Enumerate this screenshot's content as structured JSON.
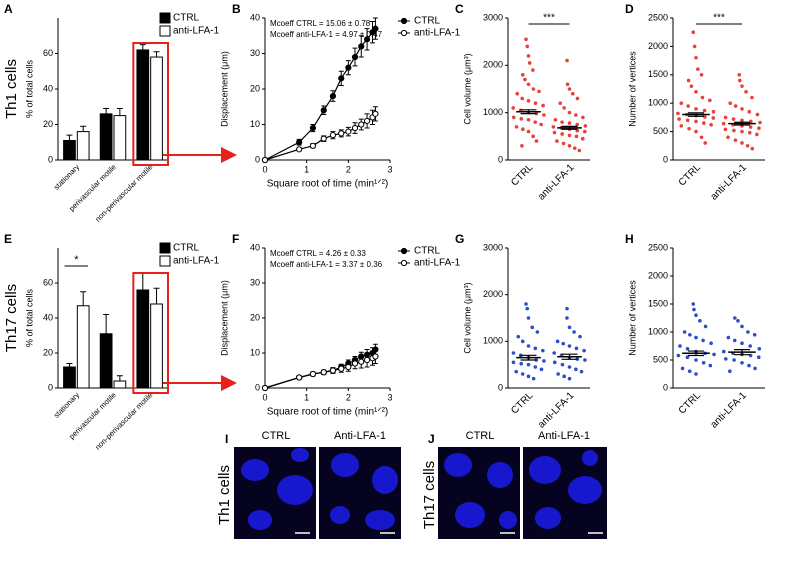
{
  "chart_data": [
    {
      "type": "bar",
      "panel": "A",
      "row_label": "Th1 cells",
      "ylabel": "% of total cells",
      "categories": [
        "stationary",
        "perivascular motile",
        "non-perivascular motile"
      ],
      "series": [
        {
          "name": "CTRL",
          "color": "#000000",
          "values": [
            11,
            26,
            62
          ],
          "errors": [
            3,
            3,
            3
          ]
        },
        {
          "name": "anti-LFA-1",
          "color": "#ffffff",
          "values": [
            16,
            25,
            58
          ],
          "errors": [
            3,
            4,
            3
          ]
        }
      ],
      "ylim": [
        0,
        80
      ],
      "yticks": [
        0,
        20,
        40,
        60
      ]
    },
    {
      "type": "line",
      "panel": "B",
      "xlabel": "Square root of time (min¹ᐟ²)",
      "ylabel": "Displacement (μm)",
      "annotations": [
        "Mcoeff CTRL = 15.06 ± 0.78",
        "Mcoeff anti-LFA-1 = 4.97 ± 0.47"
      ],
      "x": [
        0,
        0.82,
        1.15,
        1.41,
        1.63,
        1.83,
        2,
        2.16,
        2.31,
        2.45,
        2.58,
        2.65
      ],
      "series": [
        {
          "name": "CTRL",
          "color": "#000000",
          "values": [
            0,
            5,
            9,
            14,
            18,
            23,
            26,
            29,
            32,
            34,
            36,
            37
          ],
          "errors": [
            0,
            0.8,
            1,
            1.2,
            1.5,
            2,
            2,
            2.5,
            3,
            3,
            3,
            3
          ]
        },
        {
          "name": "anti-LFA-1",
          "color": "#ffffff",
          "values": [
            0,
            3,
            4,
            6,
            7,
            7.5,
            8,
            9,
            10,
            11,
            12,
            13
          ],
          "errors": [
            0,
            0.4,
            0.6,
            0.8,
            1,
            1,
            1.2,
            1.5,
            1.5,
            2,
            2,
            2
          ]
        }
      ],
      "xlim": [
        0,
        3
      ],
      "xticks": [
        0,
        1,
        2,
        3
      ],
      "ylim": [
        0,
        40
      ],
      "yticks": [
        0,
        10,
        20,
        30,
        40
      ]
    },
    {
      "type": "dot",
      "panel": "C",
      "ylabel": "Cell volume (μm³)",
      "color": "#e8403a",
      "significance": "***",
      "categories": [
        "CTRL",
        "anti-LFA-1"
      ],
      "values": [
        [
          2550,
          2400,
          2200,
          2050,
          1900,
          1800,
          1700,
          1600,
          1500,
          1450,
          1400,
          1300,
          1250,
          1200,
          1150,
          1100,
          1050,
          1000,
          980,
          950,
          900,
          870,
          850,
          800,
          750,
          700,
          650,
          600,
          500,
          400,
          300
        ],
        [
          2100,
          1600,
          1500,
          1400,
          1300,
          1200,
          1100,
          1000,
          950,
          900,
          850,
          800,
          780,
          750,
          720,
          700,
          680,
          650,
          620,
          600,
          580,
          550,
          520,
          500,
          450,
          400,
          350,
          300,
          250,
          200
        ]
      ],
      "means": [
        1020,
        680
      ],
      "errors": [
        40,
        30
      ],
      "ylim": [
        0,
        3000
      ],
      "yticks": [
        0,
        1000,
        2000,
        3000
      ]
    },
    {
      "type": "dot",
      "panel": "D",
      "ylabel": "Number of vertices",
      "color": "#e8403a",
      "significance": "***",
      "categories": [
        "CTRL",
        "anti-LFA-1"
      ],
      "values": [
        [
          2250,
          2000,
          1800,
          1600,
          1500,
          1400,
          1300,
          1200,
          1100,
          1050,
          1000,
          950,
          900,
          870,
          850,
          820,
          800,
          780,
          760,
          740,
          720,
          700,
          680,
          650,
          620,
          600,
          550,
          500,
          400,
          300
        ],
        [
          1500,
          1400,
          1300,
          1200,
          1100,
          1000,
          950,
          900,
          850,
          800,
          750,
          720,
          700,
          680,
          660,
          640,
          620,
          600,
          580,
          560,
          540,
          520,
          500,
          480,
          450,
          400,
          350,
          300,
          250,
          200
        ]
      ],
      "means": [
        800,
        640
      ],
      "errors": [
        30,
        25
      ],
      "ylim": [
        0,
        2500
      ],
      "yticks": [
        0,
        500,
        1000,
        1500,
        2000,
        2500
      ]
    },
    {
      "type": "bar",
      "panel": "E",
      "row_label": "Th17 cells",
      "ylabel": "% of total cells",
      "significance": "*",
      "categories": [
        "stationary",
        "perivascular motile",
        "non-perivascular motile"
      ],
      "series": [
        {
          "name": "CTRL",
          "color": "#000000",
          "values": [
            12,
            31,
            56
          ],
          "errors": [
            2,
            11,
            10
          ]
        },
        {
          "name": "anti-LFA-1",
          "color": "#ffffff",
          "values": [
            47,
            4,
            48
          ],
          "errors": [
            8,
            3,
            9
          ]
        }
      ],
      "ylim": [
        0,
        80
      ],
      "yticks": [
        0,
        20,
        40,
        60
      ]
    },
    {
      "type": "line",
      "panel": "F",
      "xlabel": "Square root of time (min¹ᐟ²)",
      "ylabel": "Displacement  (μm)",
      "annotations": [
        "Mcoeff CTRL = 4.26 ± 0.33",
        "Mcoeff anti-LFA-1 = 3.37 ± 0.36"
      ],
      "x": [
        0,
        0.82,
        1.15,
        1.41,
        1.63,
        1.83,
        2,
        2.16,
        2.31,
        2.45,
        2.58,
        2.65
      ],
      "series": [
        {
          "name": "CTRL",
          "color": "#000000",
          "values": [
            0,
            3,
            4,
            4.5,
            5,
            6,
            7,
            8,
            9,
            9.5,
            10,
            11
          ],
          "errors": [
            0,
            0.4,
            0.5,
            0.6,
            0.8,
            0.8,
            1,
            1,
            1.2,
            1.5,
            1.5,
            1.5
          ]
        },
        {
          "name": "anti-LFA-1",
          "color": "#ffffff",
          "values": [
            0,
            3,
            4,
            4.5,
            5,
            5.5,
            6,
            7,
            7.5,
            8,
            8.5,
            9
          ],
          "errors": [
            0,
            0.4,
            0.5,
            0.6,
            0.8,
            1,
            1.2,
            1.5,
            1.8,
            2,
            2,
            2
          ]
        }
      ],
      "xlim": [
        0,
        3
      ],
      "xticks": [
        0,
        1,
        2,
        3
      ],
      "ylim": [
        0,
        40
      ],
      "yticks": [
        0,
        10,
        20,
        30,
        40
      ]
    },
    {
      "type": "dot",
      "panel": "G",
      "ylabel": "Cell volume (μm³)",
      "color": "#2a4fc8",
      "categories": [
        "CTRL",
        "anti-LFA-1"
      ],
      "values": [
        [
          1800,
          1700,
          1500,
          1300,
          1200,
          1100,
          1000,
          900,
          850,
          800,
          750,
          700,
          650,
          600,
          580,
          550,
          520,
          500,
          450,
          400,
          350,
          300,
          250,
          200
        ],
        [
          1700,
          1500,
          1300,
          1200,
          1100,
          1000,
          950,
          900,
          850,
          800,
          750,
          700,
          650,
          620,
          600,
          550,
          500,
          450,
          400,
          350,
          300,
          250,
          200
        ]
      ],
      "means": [
        650,
        670
      ],
      "errors": [
        50,
        55
      ],
      "ylim": [
        0,
        3000
      ],
      "yticks": [
        0,
        1000,
        2000,
        3000
      ]
    },
    {
      "type": "dot",
      "panel": "H",
      "ylabel": "Number of vertices",
      "color": "#2a4fc8",
      "categories": [
        "CTRL",
        "anti-LFA-1"
      ],
      "values": [
        [
          1500,
          1400,
          1300,
          1200,
          1100,
          1000,
          950,
          900,
          850,
          800,
          750,
          700,
          650,
          620,
          600,
          580,
          550,
          500,
          450,
          400,
          350,
          300,
          250
        ],
        [
          1250,
          1200,
          1100,
          1000,
          950,
          900,
          850,
          800,
          750,
          700,
          650,
          620,
          600,
          580,
          550,
          520,
          500,
          450,
          400,
          350,
          300
        ]
      ],
      "means": [
        620,
        640
      ],
      "errors": [
        40,
        45
      ],
      "ylim": [
        0,
        2500
      ],
      "yticks": [
        0,
        500,
        1000,
        1500,
        2000,
        2500
      ]
    }
  ],
  "image_panels": [
    {
      "panel": "I",
      "row_label": "Th1 cells",
      "columns": [
        "CTRL",
        "Anti-LFA-1"
      ]
    },
    {
      "panel": "J",
      "row_label": "Th17 cells",
      "columns": [
        "CTRL",
        "Anti-LFA-1"
      ]
    }
  ]
}
